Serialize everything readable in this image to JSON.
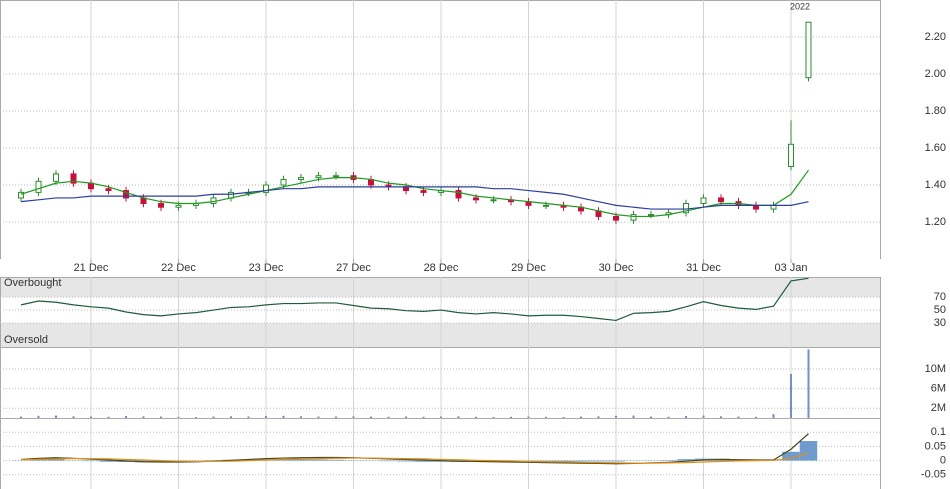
{
  "chart_data": [
    {
      "type": "candlestick",
      "year_label": "2022",
      "categories": [
        null,
        null,
        null,
        null,
        "21 Dec",
        null,
        null,
        null,
        null,
        "22 Dec",
        null,
        null,
        null,
        null,
        "23 Dec",
        null,
        null,
        null,
        null,
        "27 Dec",
        null,
        null,
        null,
        null,
        "28 Dec",
        null,
        null,
        null,
        null,
        "29 Dec",
        null,
        null,
        null,
        null,
        "30 Dec",
        null,
        null,
        null,
        null,
        "31 Dec",
        null,
        null,
        null,
        null,
        "03 Jan",
        null
      ],
      "open": [
        1.33,
        1.36,
        1.42,
        1.46,
        1.41,
        1.38,
        1.37,
        1.33,
        1.3,
        1.28,
        1.29,
        1.3,
        1.33,
        1.36,
        1.36,
        1.4,
        1.43,
        1.44,
        1.45,
        1.45,
        1.43,
        1.4,
        1.39,
        1.37,
        1.36,
        1.37,
        1.33,
        1.32,
        1.32,
        1.31,
        1.29,
        1.29,
        1.28,
        1.26,
        1.23,
        1.21,
        1.24,
        1.24,
        1.25,
        1.3,
        1.33,
        1.31,
        1.29,
        1.27,
        1.5,
        1.98
      ],
      "high": [
        1.38,
        1.44,
        1.48,
        1.48,
        1.43,
        1.4,
        1.39,
        1.35,
        1.32,
        1.31,
        1.32,
        1.35,
        1.38,
        1.38,
        1.42,
        1.45,
        1.46,
        1.47,
        1.47,
        1.47,
        1.45,
        1.42,
        1.41,
        1.39,
        1.39,
        1.39,
        1.35,
        1.34,
        1.34,
        1.33,
        1.31,
        1.31,
        1.3,
        1.28,
        1.25,
        1.26,
        1.26,
        1.27,
        1.32,
        1.35,
        1.35,
        1.33,
        1.31,
        1.31,
        1.75,
        2.28
      ],
      "low": [
        1.31,
        1.34,
        1.4,
        1.39,
        1.36,
        1.35,
        1.31,
        1.28,
        1.26,
        1.26,
        1.27,
        1.28,
        1.31,
        1.34,
        1.34,
        1.38,
        1.41,
        1.42,
        1.43,
        1.41,
        1.38,
        1.37,
        1.35,
        1.34,
        1.34,
        1.31,
        1.3,
        1.3,
        1.29,
        1.27,
        1.27,
        1.26,
        1.24,
        1.21,
        1.19,
        1.19,
        1.22,
        1.22,
        1.23,
        1.28,
        1.29,
        1.27,
        1.25,
        1.25,
        1.48,
        1.96
      ],
      "close": [
        1.36,
        1.42,
        1.46,
        1.41,
        1.38,
        1.37,
        1.33,
        1.3,
        1.28,
        1.29,
        1.3,
        1.33,
        1.36,
        1.36,
        1.4,
        1.43,
        1.44,
        1.45,
        1.45,
        1.43,
        1.4,
        1.39,
        1.37,
        1.36,
        1.37,
        1.33,
        1.32,
        1.32,
        1.31,
        1.29,
        1.29,
        1.28,
        1.26,
        1.23,
        1.21,
        1.24,
        1.24,
        1.25,
        1.3,
        1.33,
        1.31,
        1.29,
        1.27,
        1.29,
        1.62,
        2.28
      ],
      "up_color": "#2e8b2e",
      "down_color": "#c8103c",
      "series": [
        {
          "color": "#1f9a1f",
          "values": [
            1.35,
            1.38,
            1.41,
            1.42,
            1.41,
            1.39,
            1.36,
            1.33,
            1.31,
            1.3,
            1.3,
            1.31,
            1.33,
            1.35,
            1.37,
            1.39,
            1.41,
            1.43,
            1.44,
            1.44,
            1.43,
            1.41,
            1.4,
            1.38,
            1.37,
            1.36,
            1.34,
            1.33,
            1.32,
            1.31,
            1.3,
            1.29,
            1.28,
            1.26,
            1.24,
            1.23,
            1.23,
            1.24,
            1.26,
            1.28,
            1.3,
            1.3,
            1.29,
            1.29,
            1.35,
            1.48
          ]
        },
        {
          "color": "#2b3f9e",
          "values": [
            1.31,
            1.32,
            1.33,
            1.33,
            1.34,
            1.34,
            1.34,
            1.34,
            1.34,
            1.34,
            1.34,
            1.35,
            1.35,
            1.36,
            1.37,
            1.38,
            1.38,
            1.39,
            1.39,
            1.39,
            1.39,
            1.39,
            1.39,
            1.39,
            1.39,
            1.39,
            1.39,
            1.38,
            1.38,
            1.37,
            1.36,
            1.35,
            1.33,
            1.31,
            1.29,
            1.28,
            1.27,
            1.27,
            1.27,
            1.28,
            1.29,
            1.29,
            1.29,
            1.29,
            1.29,
            1.31
          ]
        }
      ],
      "ylim": [
        1.0,
        2.4
      ],
      "yticks": [
        {
          "value": 1.2,
          "label": "1.20"
        },
        {
          "value": 1.4,
          "label": "1.40"
        },
        {
          "value": 1.6,
          "label": "1.60"
        },
        {
          "value": 1.8,
          "label": "1.80"
        },
        {
          "value": 2.0,
          "label": "2.00"
        },
        {
          "value": 2.2,
          "label": "2.20"
        }
      ]
    },
    {
      "type": "line",
      "overbought_label": "Overbought",
      "oversold_label": "Oversold",
      "overbought": 70,
      "oversold": 30,
      "series": [
        {
          "color": "#1d5c3a",
          "values": [
            58,
            64,
            62,
            58,
            55,
            53,
            47,
            43,
            41,
            44,
            46,
            50,
            54,
            55,
            58,
            60,
            60,
            61,
            61,
            57,
            53,
            52,
            49,
            48,
            50,
            46,
            44,
            46,
            44,
            41,
            42,
            42,
            40,
            37,
            34,
            45,
            46,
            48,
            55,
            63,
            57,
            53,
            51,
            56,
            95,
            99
          ]
        }
      ],
      "ylim": [
        -7,
        101
      ],
      "yticks": [
        30,
        50,
        70
      ]
    },
    {
      "type": "bar",
      "color": "#6f93c0",
      "values": [
        300000,
        450000,
        500000,
        350000,
        300000,
        250000,
        400000,
        350000,
        300000,
        250000,
        200000,
        300000,
        350000,
        300000,
        400000,
        450000,
        350000,
        300000,
        300000,
        350000,
        300000,
        250000,
        300000,
        250000,
        300000,
        350000,
        250000,
        200000,
        250000,
        300000,
        250000,
        200000,
        300000,
        350000,
        450000,
        500000,
        300000,
        250000,
        400000,
        500000,
        350000,
        300000,
        250000,
        800000,
        9000000,
        14000000
      ],
      "ylim": [
        0,
        14500000
      ],
      "yticks": [
        {
          "value": 2000000,
          "label": "2M"
        },
        {
          "value": 6000000,
          "label": "6M"
        },
        {
          "value": 10000000,
          "label": "10M"
        }
      ]
    },
    {
      "type": "line",
      "histogram": {
        "color": "#6f9ccc",
        "values": [
          0.001,
          0.004,
          0.004,
          0.001,
          -0.002,
          -0.004,
          -0.005,
          -0.006,
          -0.005,
          -0.003,
          -0.001,
          0.001,
          0.003,
          0.004,
          0.005,
          0.005,
          0.004,
          0.004,
          0.003,
          0.001,
          -0.001,
          -0.002,
          -0.003,
          -0.004,
          -0.004,
          -0.005,
          -0.004,
          -0.004,
          -0.004,
          -0.003,
          -0.003,
          -0.003,
          -0.003,
          -0.003,
          -0.003,
          -0.001,
          0.001,
          0.002,
          0.005,
          0.007,
          0.007,
          0.004,
          0.002,
          0.001,
          0.031,
          0.069
        ]
      },
      "series": [
        {
          "color": "#4a4a1e",
          "values": [
            0.004,
            0.008,
            0.01,
            0.008,
            0.005,
            0.002,
            -0.001,
            -0.004,
            -0.005,
            -0.005,
            -0.004,
            -0.002,
            0.001,
            0.004,
            0.007,
            0.009,
            0.01,
            0.011,
            0.011,
            0.01,
            0.008,
            0.006,
            0.004,
            0.002,
            0.0,
            -0.002,
            -0.003,
            -0.004,
            -0.005,
            -0.006,
            -0.007,
            -0.008,
            -0.009,
            -0.01,
            -0.011,
            -0.01,
            -0.008,
            -0.006,
            -0.002,
            0.002,
            0.004,
            0.003,
            0.002,
            0.002,
            0.04,
            0.095
          ]
        },
        {
          "color": "#e0901a",
          "values": [
            0.003,
            0.004,
            0.006,
            0.007,
            0.007,
            0.006,
            0.004,
            0.002,
            0.0,
            -0.002,
            -0.003,
            -0.003,
            -0.002,
            0.0,
            0.002,
            0.004,
            0.006,
            0.007,
            0.008,
            0.009,
            0.009,
            0.008,
            0.007,
            0.006,
            0.004,
            0.003,
            0.001,
            0.0,
            -0.001,
            -0.003,
            -0.004,
            -0.005,
            -0.006,
            -0.007,
            -0.008,
            -0.009,
            -0.009,
            -0.008,
            -0.007,
            -0.005,
            -0.003,
            -0.001,
            0.0,
            0.001,
            0.009,
            0.026
          ]
        }
      ],
      "ylim": [
        -0.1,
        0.15
      ],
      "yticks": [
        -0.05,
        0,
        0.05,
        0.1
      ]
    }
  ]
}
